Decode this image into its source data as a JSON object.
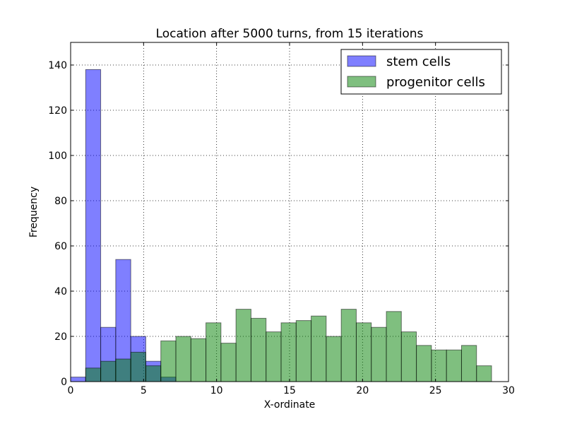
{
  "chart_data": {
    "type": "bar",
    "title": "Location after 5000 turns, from 15 iterations",
    "xlabel": "X-ordinate",
    "ylabel": "Frequency",
    "xlim": [
      0,
      30
    ],
    "ylim": [
      0,
      150
    ],
    "xticks": [
      0,
      5,
      10,
      15,
      20,
      25,
      30
    ],
    "yticks": [
      0,
      20,
      40,
      60,
      80,
      100,
      120,
      140
    ],
    "grid": true,
    "legend_position": "top-right",
    "bin_width": 1.03,
    "series": [
      {
        "name": "stem cells",
        "color": "#0000ff",
        "alpha": 0.5,
        "bin_starts": [
          0,
          1.03,
          2.06,
          3.09,
          4.12,
          5.15,
          6.18
        ],
        "values": [
          2,
          138,
          24,
          54,
          20,
          9,
          2
        ]
      },
      {
        "name": "progenitor cells",
        "color": "#008000",
        "alpha": 0.5,
        "bin_starts": [
          1.03,
          2.06,
          3.09,
          4.12,
          5.15,
          6.18,
          7.21,
          8.24,
          9.27,
          10.3,
          11.33,
          12.36,
          13.39,
          14.42,
          15.45,
          16.48,
          17.51,
          18.54,
          19.57,
          20.6,
          21.63,
          22.66,
          23.69,
          24.72,
          25.75,
          26.78,
          27.81
        ],
        "values": [
          6,
          9,
          10,
          13,
          7,
          18,
          20,
          19,
          26,
          17,
          32,
          28,
          22,
          26,
          27,
          29,
          20,
          32,
          26,
          24,
          31,
          22,
          16,
          14,
          14,
          16,
          7
        ]
      }
    ]
  }
}
